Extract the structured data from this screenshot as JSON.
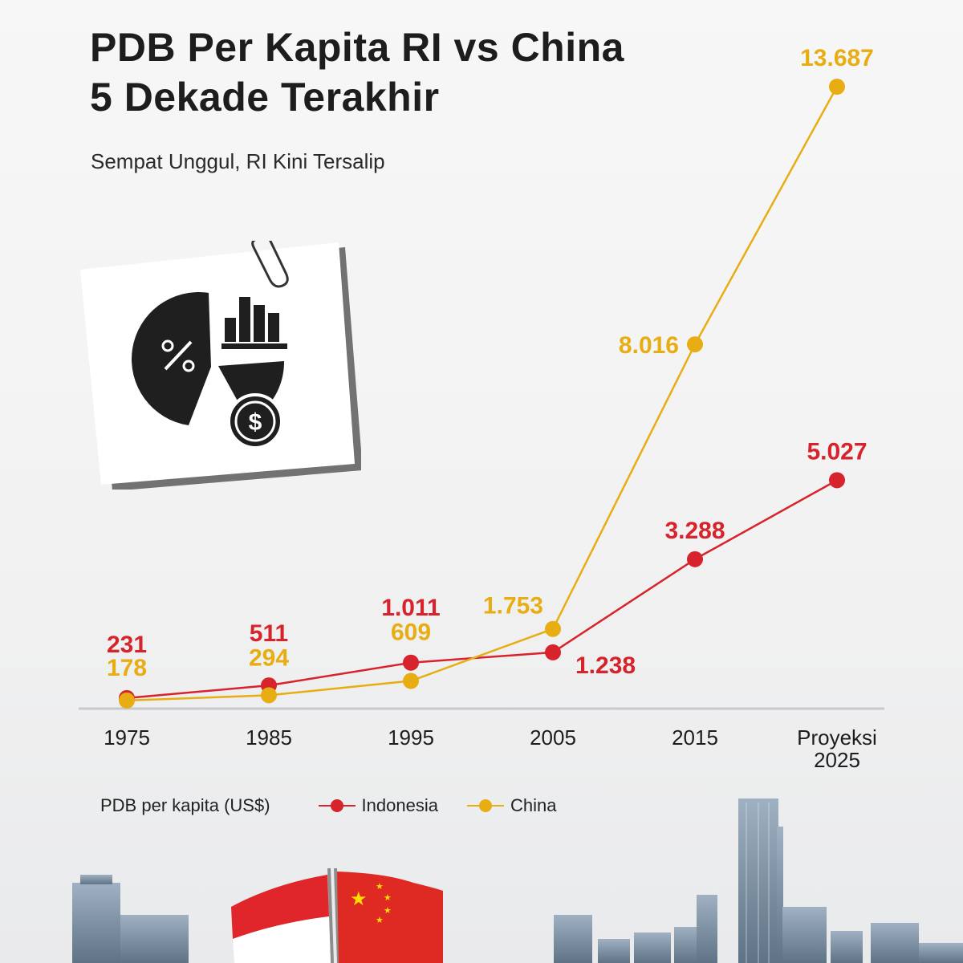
{
  "title": "PDB Per Kapita RI vs China\n5 Dekade Terakhir",
  "subtitle": "Sempat Unggul, RI Kini Tersalip",
  "colors": {
    "indonesia": "#d7232b",
    "china": "#e8ad12",
    "axis": "#c9c9c9",
    "text": "#1d1d1d"
  },
  "icons": [
    "paperclip-icon",
    "pie-chart-icon",
    "percent-icon",
    "bar-chart-icon",
    "dollar-coin-icon",
    "indonesia-flag-icon",
    "china-flag-icon",
    "city-skyline-icon"
  ],
  "legend": {
    "ylabel": "PDB per kapita (US$)",
    "items": [
      "Indonesia",
      "China"
    ]
  },
  "chart_data": {
    "type": "line",
    "title": "PDB Per Kapita RI vs China 5 Dekade Terakhir",
    "subtitle": "Sempat Unggul, RI Kini Tersalip",
    "ylabel": "PDB per kapita (US$)",
    "categories": [
      "1975",
      "1985",
      "1995",
      "2005",
      "2015",
      "Proyeksi 2025"
    ],
    "series": [
      {
        "name": "Indonesia",
        "color": "#d7232b",
        "values": [
          231,
          511,
          1011,
          1238,
          3288,
          5027
        ],
        "labels": [
          "231",
          "511",
          "1.011",
          "1.238",
          "3.288",
          "5.027"
        ]
      },
      {
        "name": "China",
        "color": "#e8ad12",
        "values": [
          178,
          294,
          609,
          1753,
          8016,
          13687
        ],
        "labels": [
          "178",
          "294",
          "609",
          "1.753",
          "8.016",
          "13.687"
        ]
      }
    ],
    "ylim": [
      0,
      13687
    ],
    "grid": false,
    "legend": "bottom"
  }
}
